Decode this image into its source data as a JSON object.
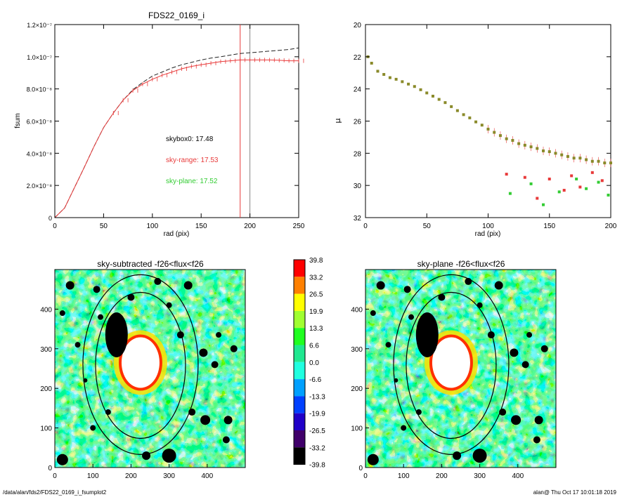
{
  "chart_data": [
    {
      "type": "line",
      "title": "FDS22_0169_i",
      "xlabel": "rad (pix)",
      "ylabel": "fsum",
      "xlim": [
        0,
        250
      ],
      "ylim": [
        0,
        1.2e-07
      ],
      "xticks": [
        "0",
        "50",
        "100",
        "150",
        "200",
        "250"
      ],
      "yticks": [
        "0",
        "2.0×10⁻⁸",
        "4.0×10⁻⁸",
        "6.0×10⁻⁸",
        "8.0×10⁻⁸",
        "1.0×10⁻⁷",
        "1.2×10⁻⁷"
      ],
      "ytick_values": [
        0,
        2e-08,
        4e-08,
        6e-08,
        8e-08,
        1e-07,
        1.2e-07
      ],
      "vlines": [
        {
          "x": 190,
          "color": "#e83a3a"
        },
        {
          "x": 200,
          "color": "#888888"
        }
      ],
      "series": [
        {
          "style": "dashed",
          "color": "#222222",
          "x": [
            0,
            10,
            20,
            30,
            40,
            50,
            60,
            70,
            80,
            90,
            100,
            110,
            120,
            130,
            140,
            150,
            160,
            170,
            180,
            190,
            200,
            210,
            220,
            230,
            240,
            250
          ],
          "y": [
            0,
            6e-09,
            1.85e-08,
            3.1e-08,
            4.4e-08,
            5.6e-08,
            6.5e-08,
            7.3e-08,
            7.95e-08,
            8.4e-08,
            8.8e-08,
            9.05e-08,
            9.3e-08,
            9.5e-08,
            9.65e-08,
            9.8e-08,
            9.92e-08,
            1e-07,
            1.01e-07,
            1.02e-07,
            1.025e-07,
            1.03e-07,
            1.035e-07,
            1.04e-07,
            1.045e-07,
            1.055e-07
          ]
        },
        {
          "style": "solid",
          "color": "#e83a3a",
          "errorbars": true,
          "x": [
            0,
            10,
            20,
            30,
            40,
            50,
            60,
            70,
            80,
            90,
            100,
            110,
            120,
            130,
            140,
            150,
            160,
            170,
            180,
            190,
            200,
            210,
            220,
            230,
            240,
            250
          ],
          "y": [
            0,
            6e-09,
            1.85e-08,
            3.1e-08,
            4.4e-08,
            5.6e-08,
            6.5e-08,
            7.3e-08,
            7.9e-08,
            8.3e-08,
            8.6e-08,
            8.85e-08,
            9.05e-08,
            9.25e-08,
            9.4e-08,
            9.5e-08,
            9.6e-08,
            9.7e-08,
            9.75e-08,
            9.8e-08,
            9.8e-08,
            9.8e-08,
            9.8e-08,
            9.78e-08,
            9.75e-08,
            9.75e-08
          ]
        }
      ],
      "annotations": [
        {
          "text": "skybox0: 17.48",
          "color": "#000000"
        },
        {
          "text": "sky-range: 17.53",
          "color": "#e83a3a"
        },
        {
          "text": "sky-plane: 17.52",
          "color": "#33cc33"
        }
      ]
    },
    {
      "type": "scatter",
      "title": "",
      "xlabel": "rad (pix)",
      "ylabel": "μ",
      "xlim": [
        0,
        200
      ],
      "ylim": [
        32,
        20
      ],
      "xticks": [
        "0",
        "50",
        "100",
        "150",
        "200"
      ],
      "yticks": [
        "20",
        "22",
        "24",
        "26",
        "28",
        "30",
        "32"
      ],
      "series": [
        {
          "marker": "square",
          "color": "#8a8a2a",
          "x": [
            2,
            5,
            10,
            15,
            20,
            25,
            30,
            35,
            40,
            45,
            50,
            55,
            60,
            65,
            70,
            75,
            80,
            85,
            90,
            95,
            100,
            105,
            110,
            115,
            120,
            125,
            130,
            135,
            140,
            145,
            150,
            155,
            160,
            165,
            170,
            175,
            180,
            185,
            190,
            195,
            200
          ],
          "y": [
            22.0,
            22.4,
            22.9,
            23.1,
            23.3,
            23.4,
            23.55,
            23.7,
            23.85,
            24.05,
            24.25,
            24.45,
            24.65,
            24.85,
            25.1,
            25.35,
            25.6,
            25.8,
            26.05,
            26.25,
            26.5,
            26.7,
            26.9,
            27.1,
            27.2,
            27.4,
            27.5,
            27.6,
            27.7,
            27.85,
            27.9,
            28.0,
            28.1,
            28.2,
            28.3,
            28.3,
            28.4,
            28.5,
            28.5,
            28.6,
            28.6
          ]
        },
        {
          "marker": "square",
          "color": "#e83a3a",
          "x": [
            115,
            130,
            140,
            150,
            162,
            168,
            175,
            185,
            193
          ],
          "y": [
            29.3,
            29.5,
            30.8,
            29.6,
            30.3,
            29.4,
            30.1,
            29.2,
            29.7
          ]
        },
        {
          "marker": "square",
          "color": "#33cc33",
          "x": [
            118,
            135,
            145,
            158,
            172,
            180,
            190,
            198
          ],
          "y": [
            30.5,
            29.9,
            31.2,
            30.4,
            29.6,
            30.2,
            29.8,
            30.6
          ]
        }
      ]
    },
    {
      "type": "heatmap",
      "title": "sky-subtracted -f26<flux<f26",
      "xlim": [
        0,
        500
      ],
      "ylim": [
        0,
        500
      ],
      "xticks": [
        "0",
        "100",
        "200",
        "300",
        "400"
      ],
      "yticks": [
        "0",
        "100",
        "200",
        "300",
        "400"
      ]
    },
    {
      "type": "heatmap",
      "title": "sky-plane -f26<flux<f26",
      "xlim": [
        0,
        500
      ],
      "ylim": [
        0,
        500
      ],
      "xticks": [
        "0",
        "100",
        "200",
        "300",
        "400"
      ],
      "yticks": [
        "0",
        "100",
        "200",
        "300",
        "400"
      ]
    }
  ],
  "colorbar": {
    "labels": [
      "39.8",
      "33.2",
      "26.5",
      "19.9",
      "13.3",
      "6.6",
      "0.0",
      "-6.6",
      "-13.3",
      "-19.9",
      "-26.5",
      "-33.2",
      "-39.8"
    ],
    "colors": [
      "#ff0000",
      "#ff8000",
      "#ffff00",
      "#a0ff30",
      "#20ff20",
      "#20e890",
      "#20ffe0",
      "#00a0ff",
      "#0040ff",
      "#2000c8",
      "#40006a",
      "#000000"
    ]
  },
  "footer": {
    "path": "/data/alan/fds2/FDS22_0169_i_fsumplot2",
    "stamp": "alan@  Thu Oct 17 10:01:18 2019"
  }
}
